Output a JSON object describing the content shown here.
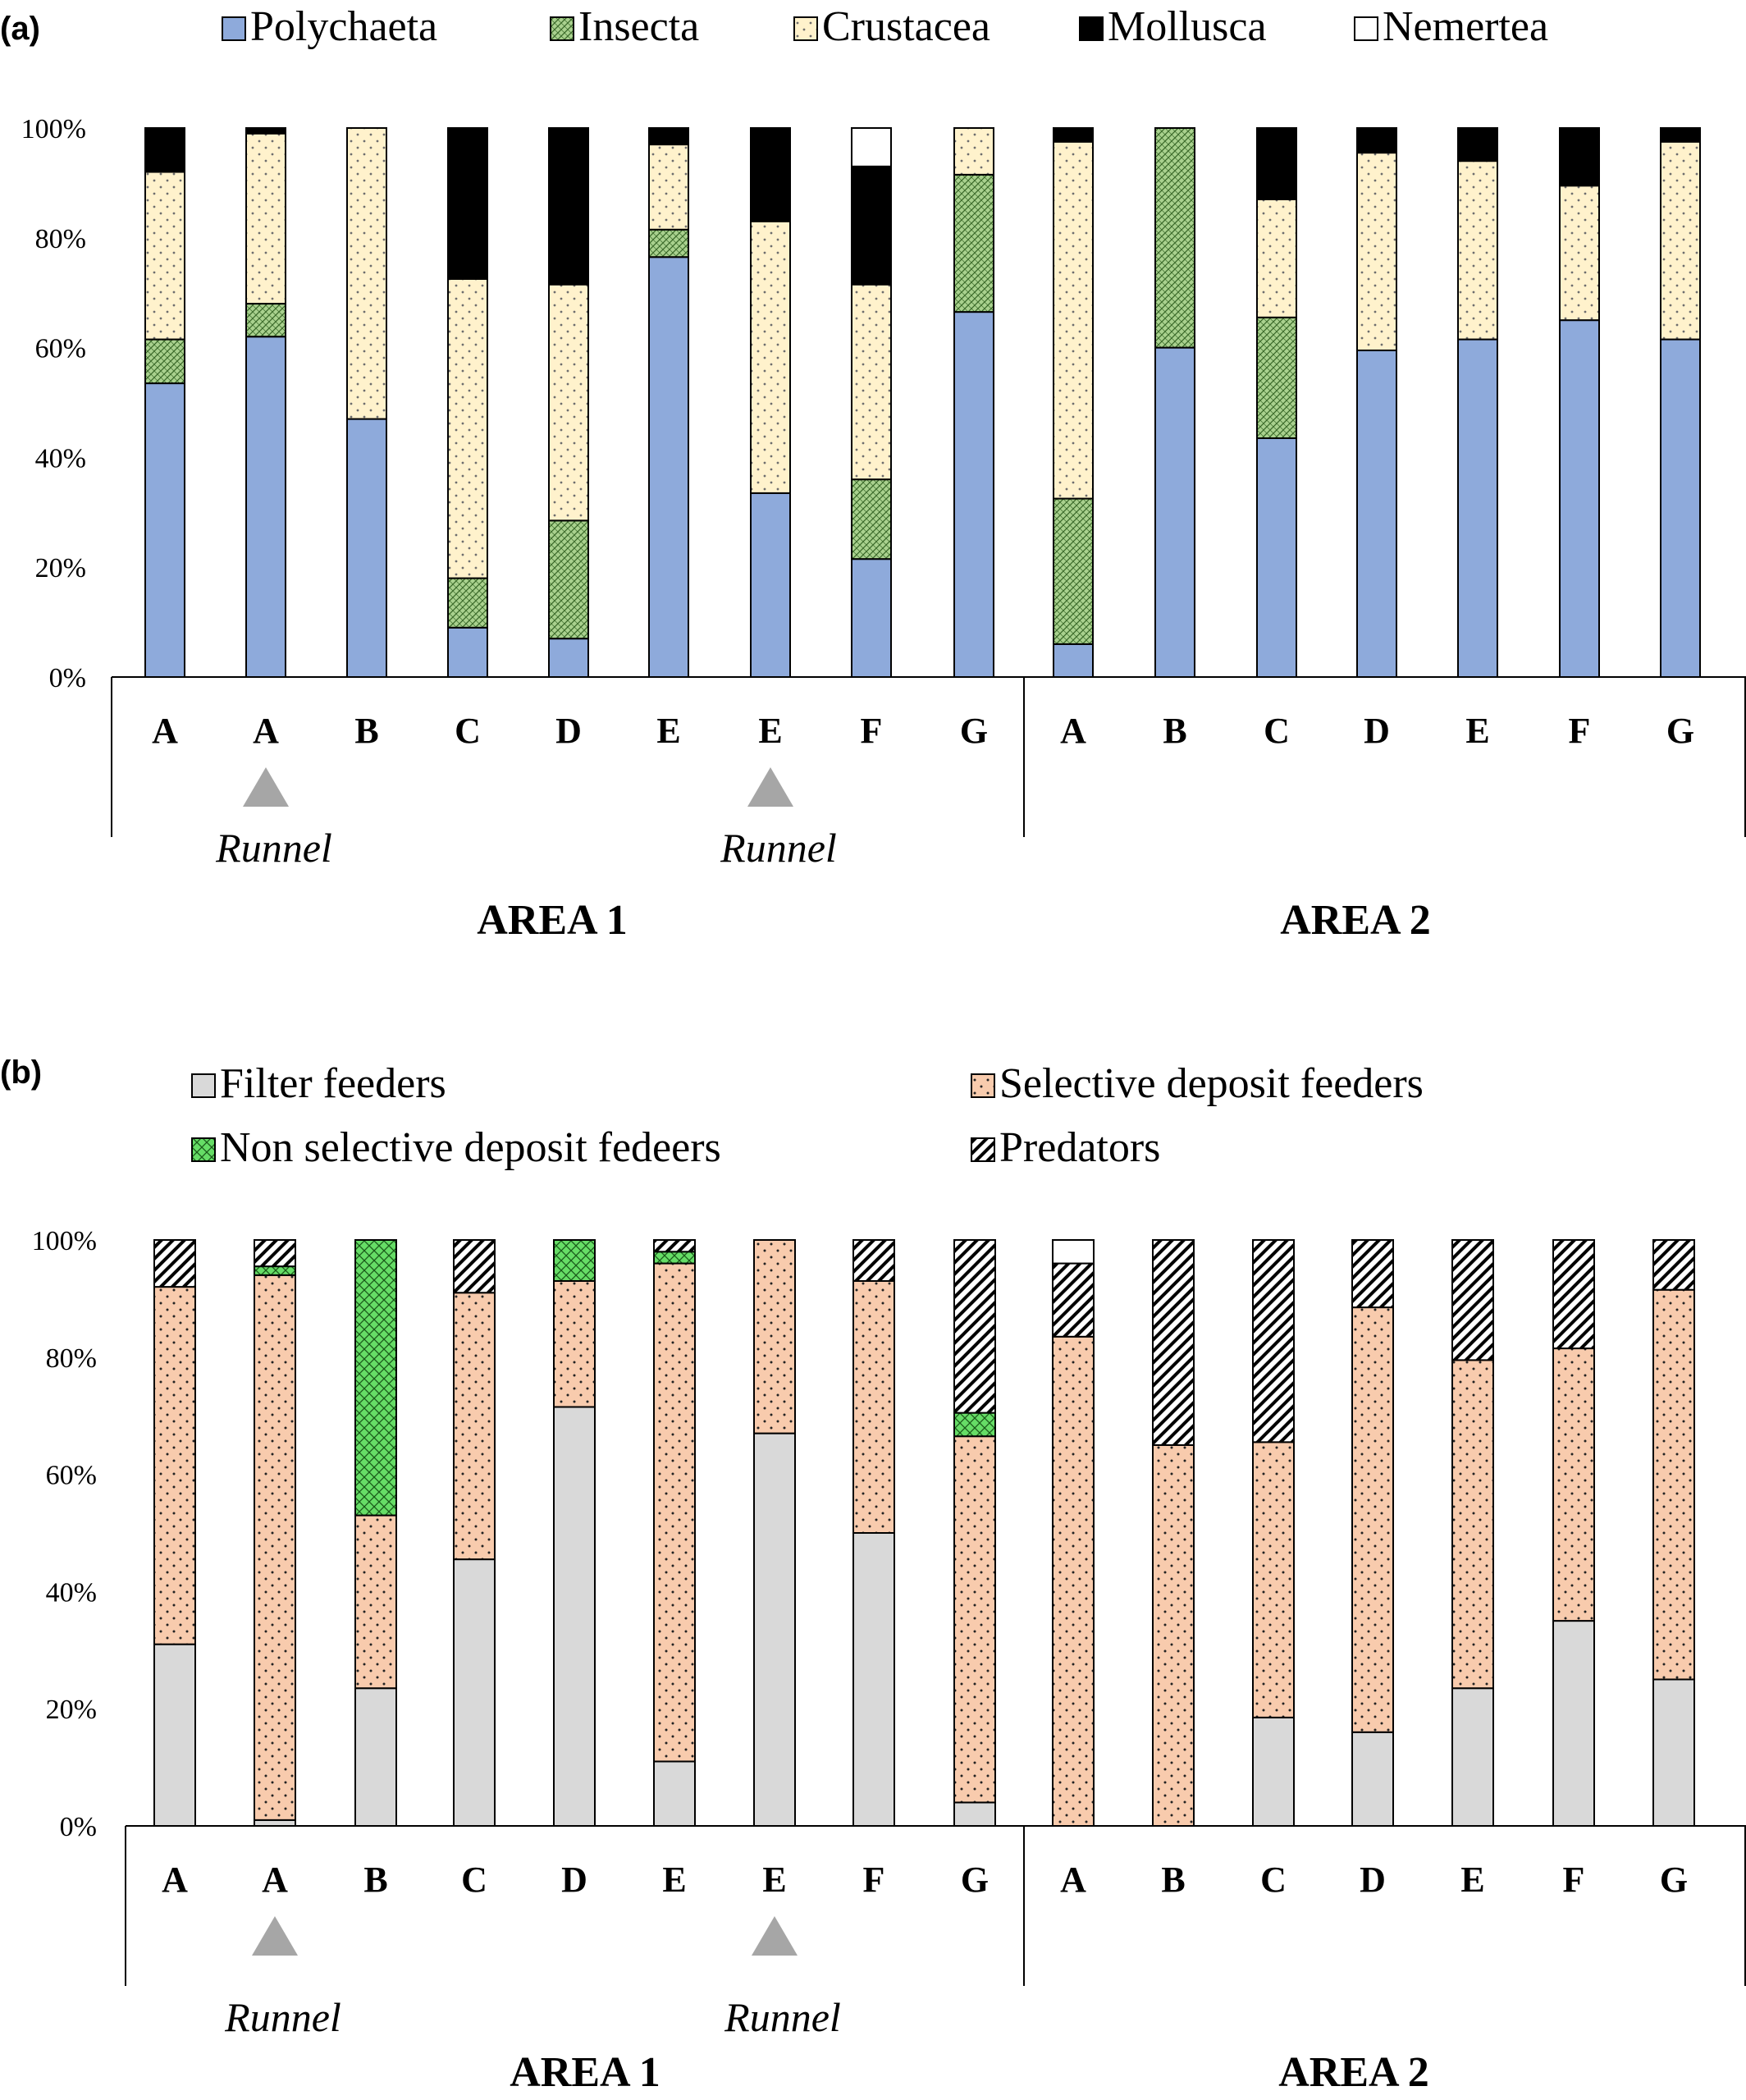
{
  "chart_data": [
    {
      "type": "bar",
      "stacked": true,
      "panel_label": "(a)",
      "ylim": [
        0,
        100
      ],
      "yticks": [
        "0%",
        "20%",
        "40%",
        "60%",
        "80%",
        "100%"
      ],
      "categories": [
        "A",
        "A",
        "B",
        "C",
        "D",
        "E",
        "E",
        "F",
        "G",
        "A",
        "B",
        "C",
        "D",
        "E",
        "F",
        "G"
      ],
      "runnel_label": "Runnel",
      "runnel_indices": [
        1,
        6
      ],
      "groups": [
        {
          "label": "AREA 1",
          "start": 0,
          "end": 8
        },
        {
          "label": "AREA 2",
          "start": 9,
          "end": 15
        }
      ],
      "legend": [
        "Polychaeta",
        "Insecta",
        "Crustacea",
        "Mollusca",
        "Nemertea"
      ],
      "series": [
        {
          "name": "Polychaeta",
          "color": "#8eaadb",
          "pattern": "solid",
          "values": [
            53.5,
            62,
            47,
            9,
            7,
            76.5,
            33.5,
            21.5,
            66.5,
            6,
            60,
            43.5,
            59.5,
            61.5,
            65,
            61.5
          ]
        },
        {
          "name": "Insecta",
          "color": "#a9d18e",
          "pattern": "crosshatch",
          "values": [
            8,
            6,
            0,
            9,
            21.5,
            5,
            0,
            14.5,
            25,
            26.5,
            40,
            22,
            0,
            0,
            0,
            0
          ]
        },
        {
          "name": "Crustacea",
          "color": "#fff2cc",
          "pattern": "dots",
          "values": [
            30.5,
            31,
            53,
            54.5,
            43,
            15.5,
            49.5,
            35.5,
            8.5,
            65,
            0,
            21.5,
            36,
            32.5,
            24.5,
            36
          ]
        },
        {
          "name": "Mollusca",
          "color": "#000000",
          "pattern": "solid",
          "values": [
            8,
            1,
            0,
            27.5,
            28.5,
            3,
            17,
            21.5,
            0,
            2.5,
            0,
            13,
            4.5,
            6,
            10.5,
            2.5
          ]
        },
        {
          "name": "Nemertea",
          "color": "#ffffff",
          "pattern": "solid",
          "values": [
            0,
            0,
            0,
            0,
            0,
            0,
            0,
            7,
            0,
            0,
            0,
            0,
            0,
            0,
            0,
            0
          ]
        }
      ]
    },
    {
      "type": "bar",
      "stacked": true,
      "panel_label": "(b)",
      "ylim": [
        0,
        100
      ],
      "yticks": [
        "0%",
        "20%",
        "40%",
        "60%",
        "80%",
        "100%"
      ],
      "categories": [
        "A",
        "A",
        "B",
        "C",
        "D",
        "E",
        "E",
        "F",
        "G",
        "A",
        "B",
        "C",
        "D",
        "E",
        "F",
        "G"
      ],
      "runnel_label": "Runnel",
      "runnel_indices": [
        1,
        6
      ],
      "groups": [
        {
          "label": "AREA 1",
          "start": 0,
          "end": 8
        },
        {
          "label": "AREA 2",
          "start": 9,
          "end": 15
        }
      ],
      "legend": [
        "Filter feeders",
        "Selective deposit feeders",
        "Non selective deposit fedeers",
        "Predators"
      ],
      "series": [
        {
          "name": "Filter feeders",
          "color": "#d9d9d9",
          "pattern": "solid",
          "values": [
            31,
            1,
            23.5,
            45.5,
            71.5,
            11,
            67,
            50,
            4,
            0,
            0,
            18.5,
            16,
            23.5,
            35,
            25
          ]
        },
        {
          "name": "Selective deposit feeders",
          "color": "#f8cbad",
          "pattern": "dots",
          "values": [
            61,
            93,
            29.5,
            45.5,
            21.5,
            85,
            33,
            43,
            62.5,
            83.5,
            65,
            47,
            72.5,
            56,
            46.5,
            66.5
          ]
        },
        {
          "name": "Non selective deposit fedeers",
          "color": "#66dd66",
          "pattern": "crosshatch",
          "values": [
            0,
            1.5,
            47,
            0,
            7,
            2,
            0,
            0,
            4,
            0,
            0,
            0,
            0,
            0,
            0,
            0
          ]
        },
        {
          "name": "Predators",
          "color": "#ffffff",
          "pattern": "diagonal",
          "values": [
            8,
            4.5,
            0,
            9,
            0,
            2,
            0,
            7,
            29.5,
            12.5,
            35,
            34.5,
            11.5,
            20.5,
            18.5,
            8.5
          ]
        },
        {
          "name": "",
          "color": "#ffffff",
          "pattern": "solid",
          "values": [
            0,
            0,
            0,
            0,
            0,
            0,
            0,
            0,
            0,
            4,
            0,
            0,
            0,
            0,
            0,
            0
          ]
        }
      ]
    }
  ]
}
